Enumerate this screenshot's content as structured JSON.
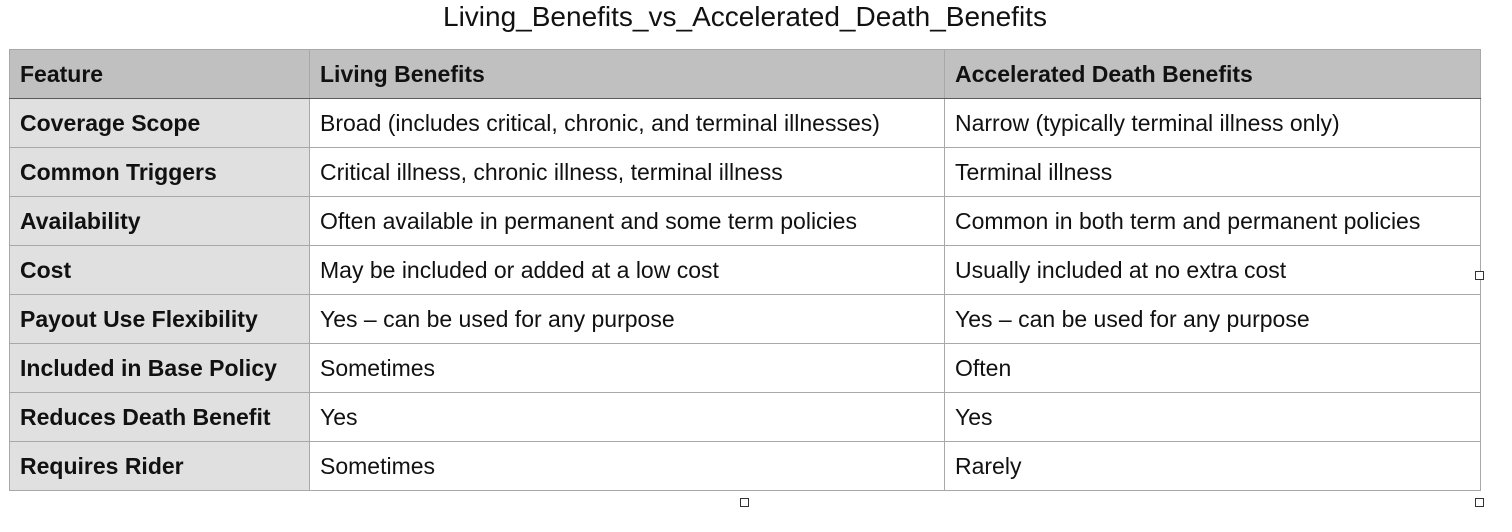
{
  "title": "Living_Benefits_vs_Accelerated_Death_Benefits",
  "table": {
    "headers": [
      "Feature",
      "Living Benefits",
      "Accelerated Death Benefits"
    ],
    "rows": [
      [
        "Coverage Scope",
        "Broad (includes critical, chronic, and terminal illnesses)",
        "Narrow (typically terminal illness only)"
      ],
      [
        "Common Triggers",
        "Critical illness, chronic illness, terminal illness",
        "Terminal illness"
      ],
      [
        "Availability",
        "Often available in permanent and some term policies",
        "Common in both term and permanent policies"
      ],
      [
        "Cost",
        "May be included or added at a low cost",
        "Usually included at no extra cost"
      ],
      [
        "Payout Use Flexibility",
        "Yes – can be used for any purpose",
        "Yes – can be used for any purpose"
      ],
      [
        "Included in Base Policy",
        "Sometimes",
        "Often"
      ],
      [
        "Reduces Death Benefit",
        "Yes",
        "Yes"
      ],
      [
        "Requires Rider",
        "Sometimes",
        "Rarely"
      ]
    ]
  },
  "colors": {
    "header_background": "#c0c0c0",
    "first_column_background": "#e0e0e0",
    "cell_background": "#ffffff",
    "grid_line": "#a8a8a8"
  }
}
